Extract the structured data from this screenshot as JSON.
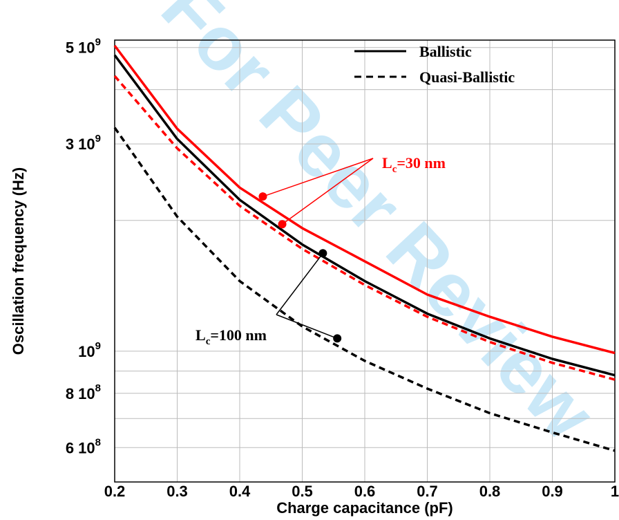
{
  "chart_data": {
    "type": "line",
    "xlabel": "Charge capacitance (pF)",
    "ylabel": "Oscillation frequency (Hz)",
    "xlim": [
      0.2,
      1.0
    ],
    "ylim": [
      500000000,
      5200000000
    ],
    "yscale": "log",
    "grid": true,
    "x_ticks": [
      0.2,
      0.3,
      0.4,
      0.5,
      0.6,
      0.7,
      0.8,
      0.9,
      1.0
    ],
    "x_tick_labels": [
      "0.2",
      "0.3",
      "0.4",
      "0.5",
      "0.6",
      "0.7",
      "0.8",
      "0.9",
      "1"
    ],
    "y_ticks": [
      {
        "value": 600000000,
        "mantissa": "6 10",
        "exp": "8"
      },
      {
        "value": 800000000,
        "mantissa": "8 10",
        "exp": "8"
      },
      {
        "value": 1000000000,
        "mantissa": "10",
        "exp": "9"
      },
      {
        "value": 3000000000,
        "mantissa": "3 10",
        "exp": "9"
      },
      {
        "value": 5000000000,
        "mantissa": "5 10",
        "exp": "9"
      }
    ],
    "y_minor_grid": [
      700000000,
      900000000,
      2000000000,
      4000000000
    ],
    "x": [
      0.2,
      0.3,
      0.4,
      0.5,
      0.6,
      0.7,
      0.8,
      0.9,
      1.0
    ],
    "series": [
      {
        "name": "Ballistic",
        "group": "Lc=30 nm",
        "color": "#ff0000",
        "dash": "solid",
        "values": [
          5050000000,
          3250000000,
          2380000000,
          1920000000,
          1610000000,
          1350000000,
          1200000000,
          1080000000,
          990000000
        ]
      },
      {
        "name": "Quasi-Ballistic",
        "group": "Lc=30 nm",
        "color": "#ff0000",
        "dash": "dashed",
        "values": [
          4300000000,
          2930000000,
          2160000000,
          1720000000,
          1420000000,
          1200000000,
          1050000000,
          940000000,
          860000000
        ]
      },
      {
        "name": "Ballistic",
        "group": "Lc=100 nm",
        "color": "#000000",
        "dash": "solid",
        "values": [
          4800000000,
          3080000000,
          2230000000,
          1760000000,
          1450000000,
          1220000000,
          1070000000,
          960000000,
          880000000
        ]
      },
      {
        "name": "Quasi-Ballistic",
        "group": "Lc=100 nm",
        "color": "#000000",
        "dash": "dashed",
        "values": [
          3270000000,
          2040000000,
          1450000000,
          1140000000,
          950000000,
          820000000,
          720000000,
          650000000,
          590000000
        ]
      }
    ],
    "markers": [
      {
        "x": 0.437,
        "y": 2270000000,
        "color": "#ff0000"
      },
      {
        "x": 0.468,
        "y": 1960000000,
        "color": "#ff0000"
      },
      {
        "x": 0.533,
        "y": 1680000000,
        "color": "#000000"
      },
      {
        "x": 0.556,
        "y": 1070000000,
        "color": "#000000"
      }
    ],
    "legend": {
      "placement": "top-right",
      "entries": [
        {
          "label": "Ballistic",
          "dash": "solid"
        },
        {
          "label": "Quasi-Ballistic",
          "dash": "dashed"
        }
      ]
    },
    "annotations": [
      {
        "base": "L",
        "sub": "c",
        "rest": "=30 nm",
        "color": "#ff0000"
      },
      {
        "base": "L",
        "sub": "c",
        "rest": "=100 nm",
        "color": "#000000"
      }
    ]
  },
  "watermark": "For Peer Review",
  "colors": {
    "red": "#ff0000",
    "black": "#000000",
    "grid": "#bbbbbb",
    "watermark": "#9fd7f4"
  }
}
